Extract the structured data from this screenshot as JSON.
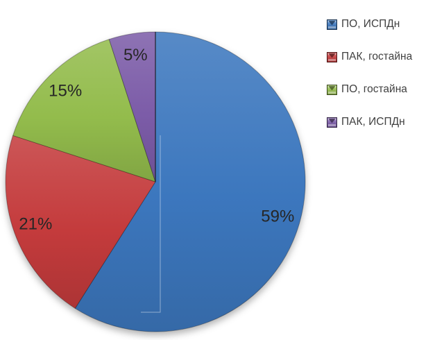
{
  "chart_data": {
    "type": "pie",
    "slices": [
      {
        "label": "ПО, ИСПДн",
        "value": 59,
        "percent_label": "59%",
        "color": "#3C77BE"
      },
      {
        "label": "ПАК, гостайна",
        "value": 21,
        "percent_label": "21%",
        "color": "#C43B3C"
      },
      {
        "label": "ПО, гостайна",
        "value": 15,
        "percent_label": "15%",
        "color": "#93BC4C"
      },
      {
        "label": "ПАК, ИСПДн",
        "value": 5,
        "percent_label": "5%",
        "color": "#7C5CA8"
      }
    ],
    "start_angle_deg": 0,
    "direction": "clockwise",
    "legend_position": "right",
    "data_label_position": "inside-end",
    "data_label_color": "#262626",
    "legend_text_color": "#404040",
    "background_color": "#FFFFFF"
  }
}
